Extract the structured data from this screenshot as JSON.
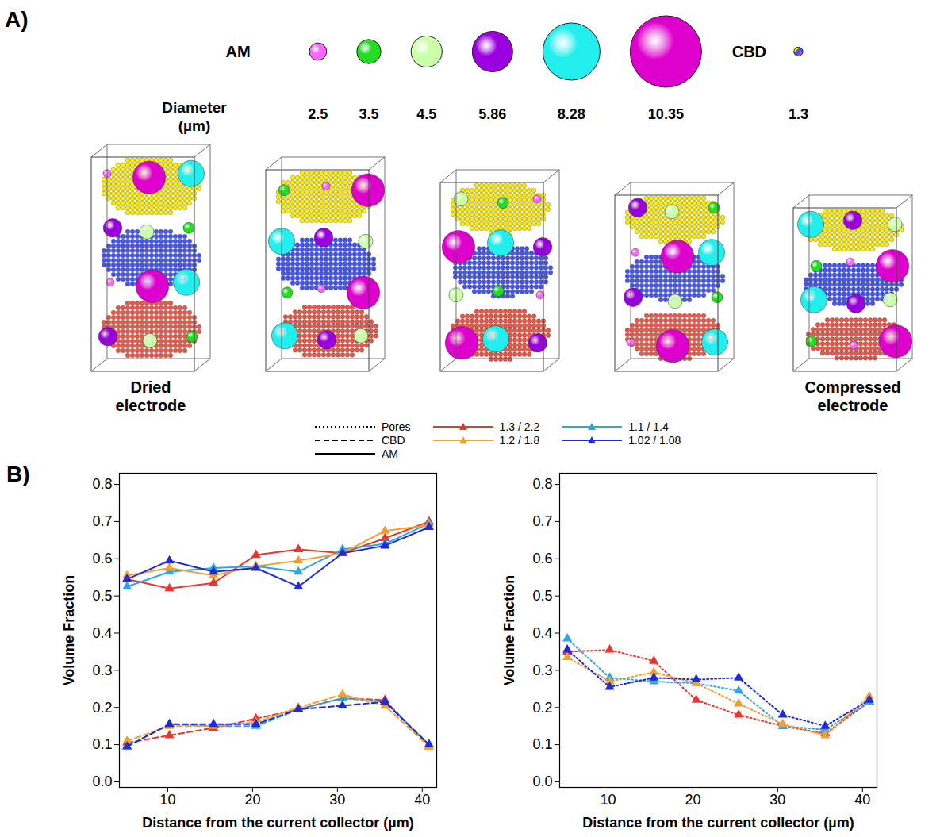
{
  "panel_a": {
    "label": "A)",
    "am_label": "AM",
    "diameter_label": "Diameter (µm)",
    "particles": [
      {
        "diameter": 2.5,
        "color": "#ff66ff"
      },
      {
        "diameter": 3.5,
        "color": "#22dd22"
      },
      {
        "diameter": 4.5,
        "color": "#ccffaa"
      },
      {
        "diameter": 5.86,
        "color": "#9900dd"
      },
      {
        "diameter": 8.28,
        "color": "#22eeee"
      },
      {
        "diameter": 10.35,
        "color": "#dd00cc"
      }
    ],
    "cbd": {
      "label": "CBD",
      "diameter": 1.3,
      "colors": [
        "#ffee00",
        "#4455ee",
        "#ee5544"
      ]
    },
    "captions": [
      "Dried electrode",
      null,
      null,
      null,
      "Compressed electrode"
    ]
  },
  "panel_b": {
    "label": "B)",
    "legend_entries": {
      "components": [
        {
          "name": "Pores",
          "line_style": "dotted"
        },
        {
          "name": "CBD",
          "line_style": "dashed"
        },
        {
          "name": "AM",
          "line_style": "solid"
        }
      ],
      "series": [
        {
          "name": "1.3 / 2.2",
          "color": "#e8372f"
        },
        {
          "name": "1.1 / 1.4",
          "color": "#2ea6e6"
        },
        {
          "name": "1.2 / 1.8",
          "color": "#f0a030"
        },
        {
          "name": "1.02 / 1.08",
          "color": "#1f2bd6"
        }
      ]
    }
  },
  "chart_data": [
    {
      "type": "line",
      "xlabel": "Distance from the current collector (µm)",
      "ylabel": "Volume Fraction",
      "xlim": [
        4.3,
        41.7
      ],
      "xticks": [
        10,
        20,
        30,
        40
      ],
      "ylim": [
        -0.015,
        0.83
      ],
      "yticks": [
        {
          "value": 0,
          "label": "0.0"
        },
        {
          "value": 0.1,
          "label": "0.1"
        },
        {
          "value": 0.2,
          "label": "0.2"
        },
        {
          "value": 0.3,
          "label": "0.3"
        },
        {
          "value": 0.4,
          "label": "0.4"
        },
        {
          "value": 0.5,
          "label": "0.5"
        },
        {
          "value": 0.6,
          "label": "0.6"
        },
        {
          "value": 0.7,
          "label": "0.7"
        },
        {
          "value": 0.8,
          "label": "0.8"
        }
      ],
      "x": [
        5.2,
        10.2,
        15.4,
        20.4,
        25.4,
        30.6,
        35.6,
        40.8
      ],
      "series": [
        {
          "name": "1.3 / 2.2",
          "component": "AM",
          "color": "#e8372f",
          "line_style": "solid",
          "marker": "triangle",
          "values": [
            0.545,
            0.52,
            0.535,
            0.61,
            0.625,
            0.615,
            0.655,
            0.7
          ]
        },
        {
          "name": "1.1 / 1.4",
          "component": "AM",
          "color": "#2ea6e6",
          "line_style": "solid",
          "marker": "triangle",
          "values": [
            0.525,
            0.565,
            0.575,
            0.58,
            0.565,
            0.625,
            0.64,
            0.695
          ]
        },
        {
          "name": "1.2 / 1.8",
          "component": "AM",
          "color": "#f0a030",
          "line_style": "solid",
          "marker": "triangle",
          "values": [
            0.555,
            0.575,
            0.555,
            0.58,
            0.595,
            0.615,
            0.675,
            0.69
          ]
        },
        {
          "name": "1.02 / 1.08",
          "component": "AM",
          "color": "#1f2bd6",
          "line_style": "solid",
          "marker": "triangle",
          "values": [
            0.545,
            0.595,
            0.565,
            0.575,
            0.525,
            0.615,
            0.635,
            0.685
          ]
        },
        {
          "name": "1.3 / 2.2",
          "component": "CBD",
          "color": "#e8372f",
          "line_style": "dashed",
          "marker": "triangle",
          "values": [
            0.105,
            0.125,
            0.145,
            0.17,
            0.195,
            0.225,
            0.22,
            0.095
          ]
        },
        {
          "name": "1.1 / 1.4",
          "component": "CBD",
          "color": "#2ea6e6",
          "line_style": "dashed",
          "marker": "triangle",
          "values": [
            0.095,
            0.155,
            0.15,
            0.15,
            0.195,
            0.225,
            0.215,
            0.1
          ]
        },
        {
          "name": "1.2 / 1.8",
          "component": "CBD",
          "color": "#f0a030",
          "line_style": "dashed",
          "marker": "triangle",
          "values": [
            0.11,
            0.15,
            0.15,
            0.16,
            0.2,
            0.235,
            0.205,
            0.095
          ]
        },
        {
          "name": "1.02 / 1.08",
          "component": "CBD",
          "color": "#1f2bd6",
          "line_style": "dashed",
          "marker": "triangle",
          "values": [
            0.095,
            0.155,
            0.155,
            0.155,
            0.195,
            0.205,
            0.215,
            0.1
          ]
        }
      ]
    },
    {
      "type": "line",
      "xlabel": "Distance from the current collector (µm)",
      "ylabel": "Volume Fraction",
      "xlim": [
        4.3,
        41.7
      ],
      "xticks": [
        10,
        20,
        30,
        40
      ],
      "ylim": [
        -0.015,
        0.83
      ],
      "yticks": [
        {
          "value": 0,
          "label": "0.0"
        },
        {
          "value": 0.1,
          "label": "0.1"
        },
        {
          "value": 0.2,
          "label": "0.2"
        },
        {
          "value": 0.3,
          "label": "0.3"
        },
        {
          "value": 0.4,
          "label": "0.4"
        },
        {
          "value": 0.5,
          "label": "0.5"
        },
        {
          "value": 0.6,
          "label": "0.6"
        },
        {
          "value": 0.7,
          "label": "0.7"
        },
        {
          "value": 0.8,
          "label": "0.8"
        }
      ],
      "x": [
        5.2,
        10.2,
        15.4,
        20.4,
        25.4,
        30.6,
        35.6,
        40.8
      ],
      "series": [
        {
          "name": "1.3 / 2.2",
          "component": "Pores",
          "color": "#e8372f",
          "line_style": "dotted",
          "marker": "triangle",
          "values": [
            0.35,
            0.355,
            0.325,
            0.22,
            0.18,
            0.15,
            0.13,
            0.215
          ]
        },
        {
          "name": "1.1 / 1.4",
          "component": "Pores",
          "color": "#2ea6e6",
          "line_style": "dotted",
          "marker": "triangle",
          "values": [
            0.385,
            0.28,
            0.27,
            0.265,
            0.245,
            0.15,
            0.14,
            0.215
          ]
        },
        {
          "name": "1.2 / 1.8",
          "component": "Pores",
          "color": "#f0a030",
          "line_style": "dotted",
          "marker": "triangle",
          "values": [
            0.335,
            0.27,
            0.295,
            0.265,
            0.21,
            0.155,
            0.125,
            0.23
          ]
        },
        {
          "name": "1.02 / 1.08",
          "component": "Pores",
          "color": "#1f2bd6",
          "line_style": "dotted",
          "marker": "triangle",
          "values": [
            0.355,
            0.255,
            0.28,
            0.275,
            0.28,
            0.18,
            0.15,
            0.22
          ]
        }
      ]
    }
  ]
}
